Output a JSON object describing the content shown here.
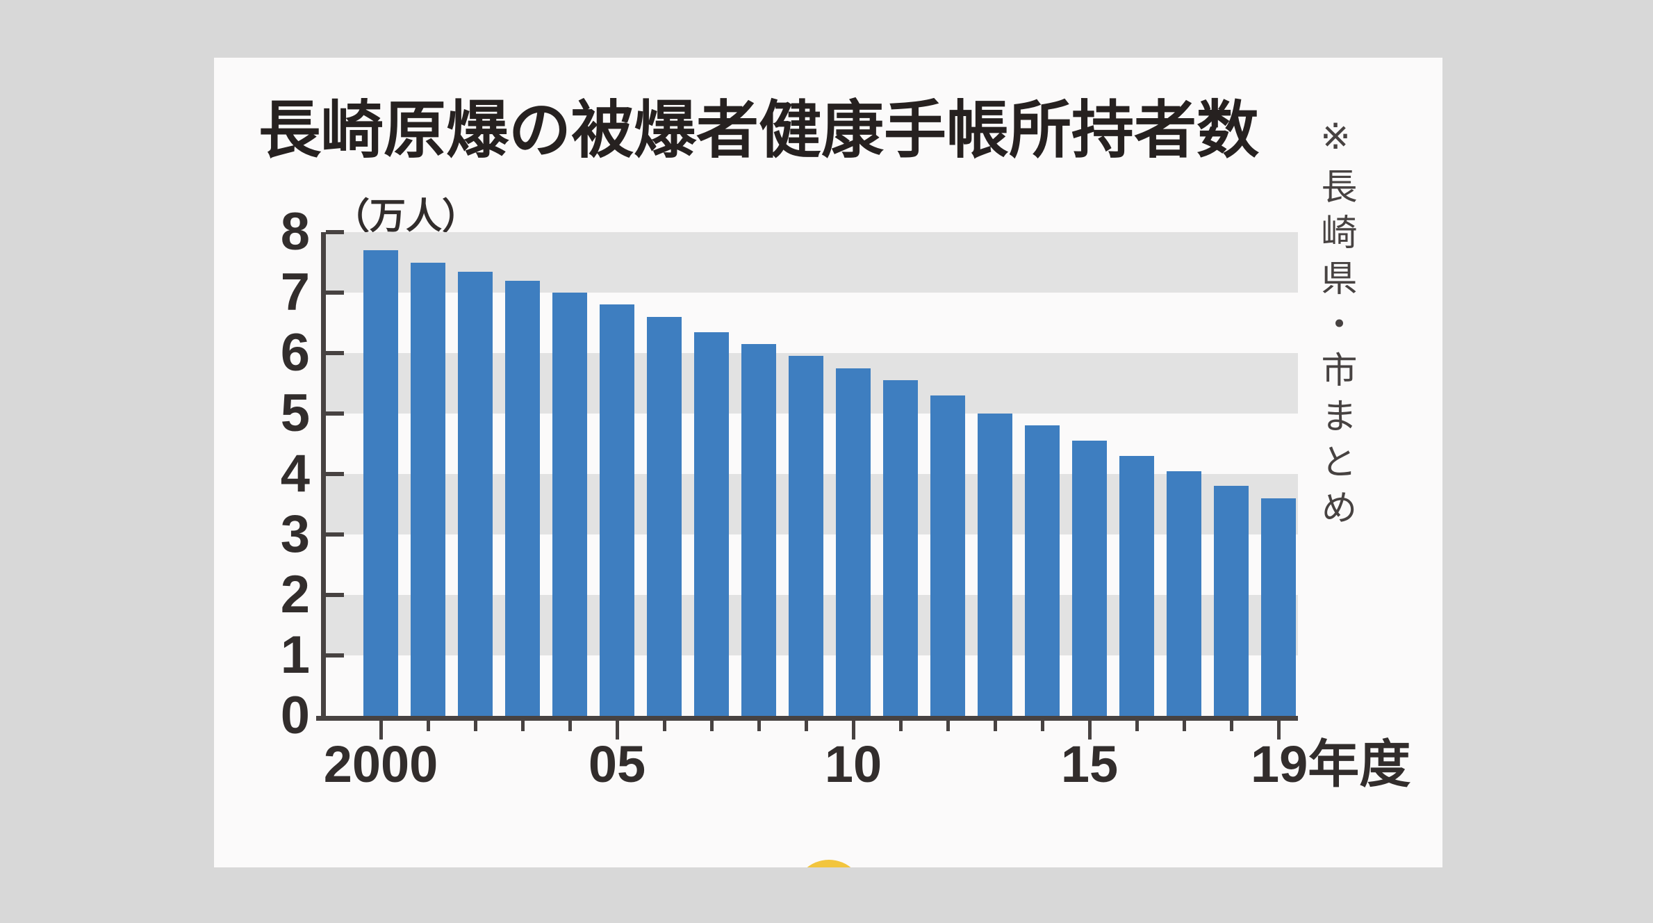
{
  "page": {
    "background_color": "#d8d8d8",
    "card_background_color": "#fbfafa"
  },
  "header": {
    "title": "長崎原爆の被爆者健康手帳所持者数",
    "source_note": "※長崎県・市まとめ"
  },
  "chart_data": {
    "type": "bar",
    "title": "長崎原爆の被爆者健康手帳所持者数",
    "unit_label": "（万人）",
    "x": [
      2000,
      2001,
      2002,
      2003,
      2004,
      2005,
      2006,
      2007,
      2008,
      2009,
      2010,
      2011,
      2012,
      2013,
      2014,
      2015,
      2016,
      2017,
      2018,
      2019
    ],
    "values": [
      7.7,
      7.5,
      7.35,
      7.2,
      7.0,
      6.8,
      6.6,
      6.35,
      6.15,
      5.95,
      5.75,
      5.55,
      5.3,
      5.0,
      4.8,
      4.55,
      4.3,
      4.05,
      3.8,
      3.6
    ],
    "ylim": [
      0,
      8
    ],
    "yticks": [
      0,
      1,
      2,
      3,
      4,
      5,
      6,
      7,
      8
    ],
    "xticks": [
      {
        "year": 2000,
        "label": "2000",
        "anchor": "center"
      },
      {
        "year": 2005,
        "label": "05",
        "anchor": "center"
      },
      {
        "year": 2010,
        "label": "10",
        "anchor": "center"
      },
      {
        "year": 2015,
        "label": "15",
        "anchor": "center"
      },
      {
        "year": 2019,
        "label": "19年度",
        "anchor": "start"
      }
    ],
    "grid_bands": [
      [
        1,
        2
      ],
      [
        3,
        4
      ],
      [
        5,
        6
      ],
      [
        7,
        8
      ]
    ],
    "bar_color": "#3e7ec0",
    "band_color": "#e2e2e2",
    "axis_color": "#474241",
    "source_note": "※長崎県・市まとめ",
    "legend": null,
    "grid": "horizontal-bands"
  },
  "decor": {
    "yellow_dot_color": "#f2c53e"
  }
}
